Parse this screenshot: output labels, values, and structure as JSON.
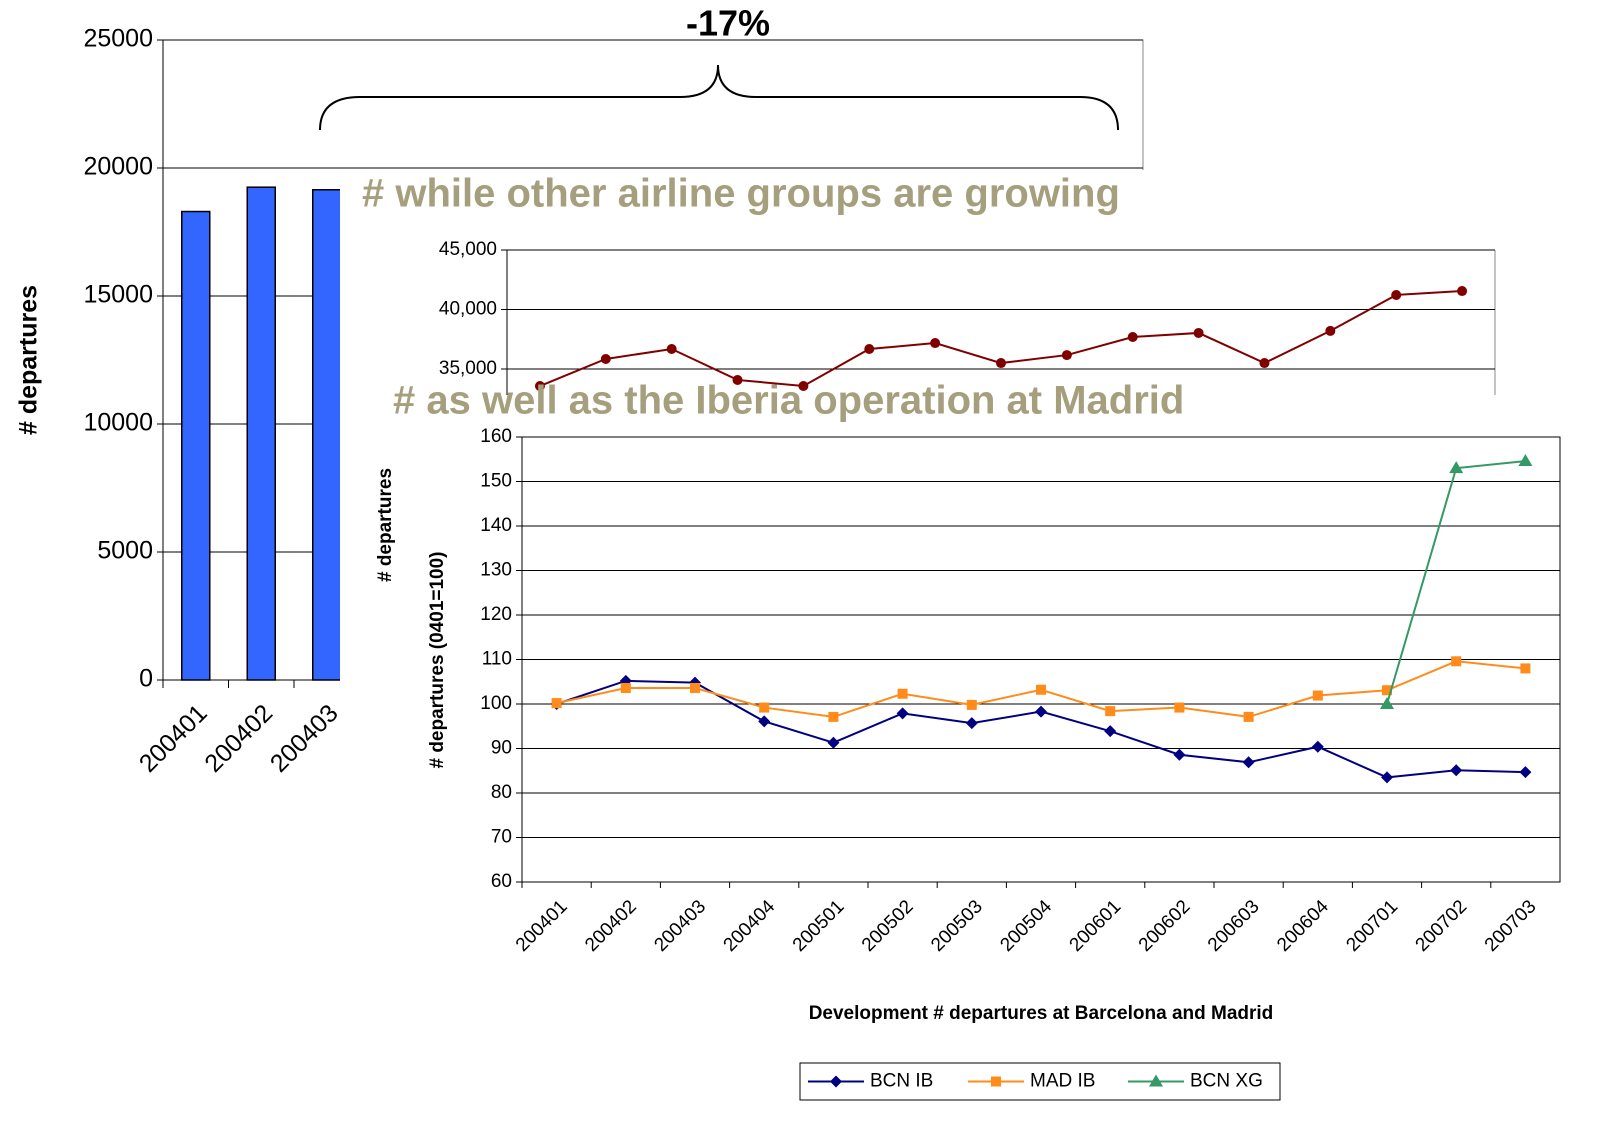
{
  "chart_data": [
    {
      "type": "bar",
      "ylabel": "# departures",
      "annotation": "-17%",
      "categories": [
        "200401",
        "200402",
        "200403"
      ],
      "values": [
        18300,
        19250,
        19150
      ],
      "color": "#3366ff",
      "ylim": [
        0,
        25000
      ],
      "yticks": [
        0,
        5000,
        10000,
        15000,
        20000,
        25000
      ],
      "grid": true
    },
    {
      "type": "line",
      "title": "# while other airline groups are growing",
      "ylabel": "# departures",
      "values": [
        33570,
        35840,
        36680,
        34080,
        33570,
        36680,
        37180,
        35500,
        36170,
        37690,
        38030,
        35500,
        38200,
        41220,
        41550
      ],
      "color": "#800000",
      "ylim": [
        30000,
        45000
      ],
      "yticks": [
        {
          "value": 35000,
          "label": "35,000"
        },
        {
          "value": 40000,
          "label": "40,000"
        },
        {
          "value": 45000,
          "label": "45,000"
        }
      ],
      "grid": true
    },
    {
      "type": "line",
      "title": "# as well as the Iberia operation at Madrid",
      "xlabel": "Development # departures at Barcelona and Madrid",
      "ylabel": "# departures (0401=100)",
      "categories": [
        "200401",
        "200402",
        "200403",
        "200404",
        "200501",
        "200502",
        "200503",
        "200504",
        "200601",
        "200602",
        "200603",
        "200604",
        "200701",
        "200702",
        "200703"
      ],
      "series": [
        {
          "name": "BCN IB",
          "color": "#000080",
          "marker": "diamond",
          "values": [
            100,
            105.2,
            104.8,
            96.1,
            91.3,
            97.9,
            95.7,
            98.3,
            93.9,
            88.6,
            86.9,
            90.4,
            83.5,
            85.1,
            84.7
          ]
        },
        {
          "name": "MAD IB",
          "color": "#ff8c1a",
          "marker": "square",
          "values": [
            100.2,
            103.6,
            103.6,
            99.2,
            97.1,
            102.3,
            99.8,
            103.2,
            98.4,
            99.2,
            97.1,
            101.9,
            103.1,
            109.6,
            108.0
          ]
        },
        {
          "name": "BCN XG",
          "color": "#339966",
          "marker": "triangle",
          "values": [
            null,
            null,
            null,
            null,
            null,
            null,
            null,
            null,
            null,
            null,
            null,
            null,
            100,
            153,
            154.6
          ]
        }
      ],
      "ylim": [
        60,
        160
      ],
      "yticks": [
        60,
        70,
        80,
        90,
        100,
        110,
        120,
        130,
        140,
        150,
        160
      ],
      "grid": true,
      "legend": "bottom"
    }
  ]
}
